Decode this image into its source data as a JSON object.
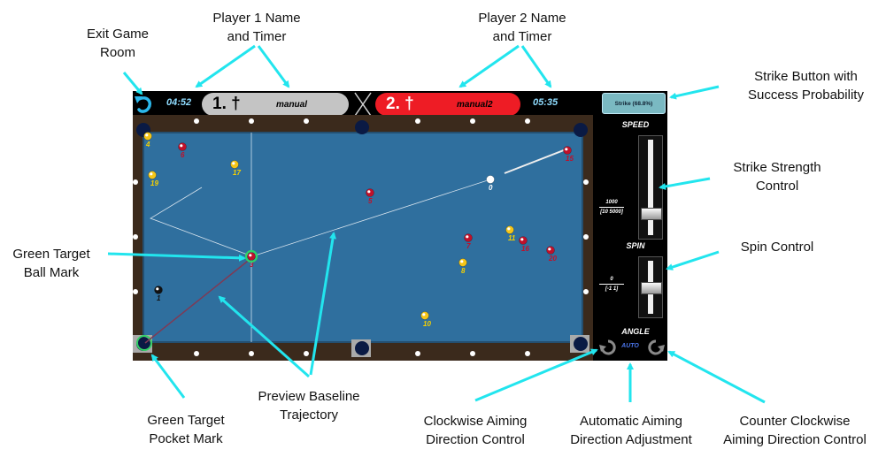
{
  "annotations": {
    "exit": "Exit Game\nRoom",
    "player1": "Player 1 Name\nand Timer",
    "player2": "Player 2 Name\nand Timer",
    "strike": "Strike Button with\nSuccess Probability",
    "strength": "Strike Strength\nControl",
    "spin": "Spin Control",
    "green_ball": "Green Target\nBall Mark",
    "green_pocket": "Green Target\nPocket Mark",
    "preview": "Preview Baseline\nTrajectory",
    "clockwise": "Clockwise Aiming\nDirection Control",
    "auto": "Automatic Aiming\nDirection Adjustment",
    "counter": "Counter Clockwise\nAiming Direction Control"
  },
  "game": {
    "player1": {
      "timer": "04:52",
      "number": "1. †",
      "name": "manual"
    },
    "player2": {
      "timer": "05:35",
      "number": "2. †",
      "name": "manual2"
    },
    "strike_label": "Strike (68.8%)",
    "speed": {
      "label": "SPEED",
      "value": "1000",
      "range": "[10 5000]",
      "level": 0.2
    },
    "spin": {
      "label": "SPIN",
      "value": "0",
      "range": "[-1 1]",
      "level": 0.5
    },
    "angle": {
      "label": "ANGLE",
      "auto_label": "AUTO"
    },
    "balls": [
      {
        "n": "4",
        "c": "#f5c518"
      },
      {
        "n": "6",
        "c": "#c0102a"
      },
      {
        "n": "17",
        "c": "#f5c518"
      },
      {
        "n": "19",
        "c": "#f5c518"
      },
      {
        "n": "5",
        "c": "#c0102a"
      },
      {
        "n": "0",
        "c": "#ffffff"
      },
      {
        "n": "15",
        "c": "#c0102a"
      },
      {
        "n": "11",
        "c": "#f5c518"
      },
      {
        "n": "7",
        "c": "#c0102a"
      },
      {
        "n": "16",
        "c": "#c0102a"
      },
      {
        "n": "20",
        "c": "#c0102a"
      },
      {
        "n": "8",
        "c": "#f5c518"
      },
      {
        "n": "3",
        "c": "#c0102a"
      },
      {
        "n": "1",
        "c": "#111111"
      },
      {
        "n": "10",
        "c": "#f5c518"
      }
    ]
  },
  "colors": {
    "cyan": "#22e5ee",
    "felt": "#2f6f9e",
    "rail": "#3b2a1c",
    "pocket": "#0a1a44"
  }
}
